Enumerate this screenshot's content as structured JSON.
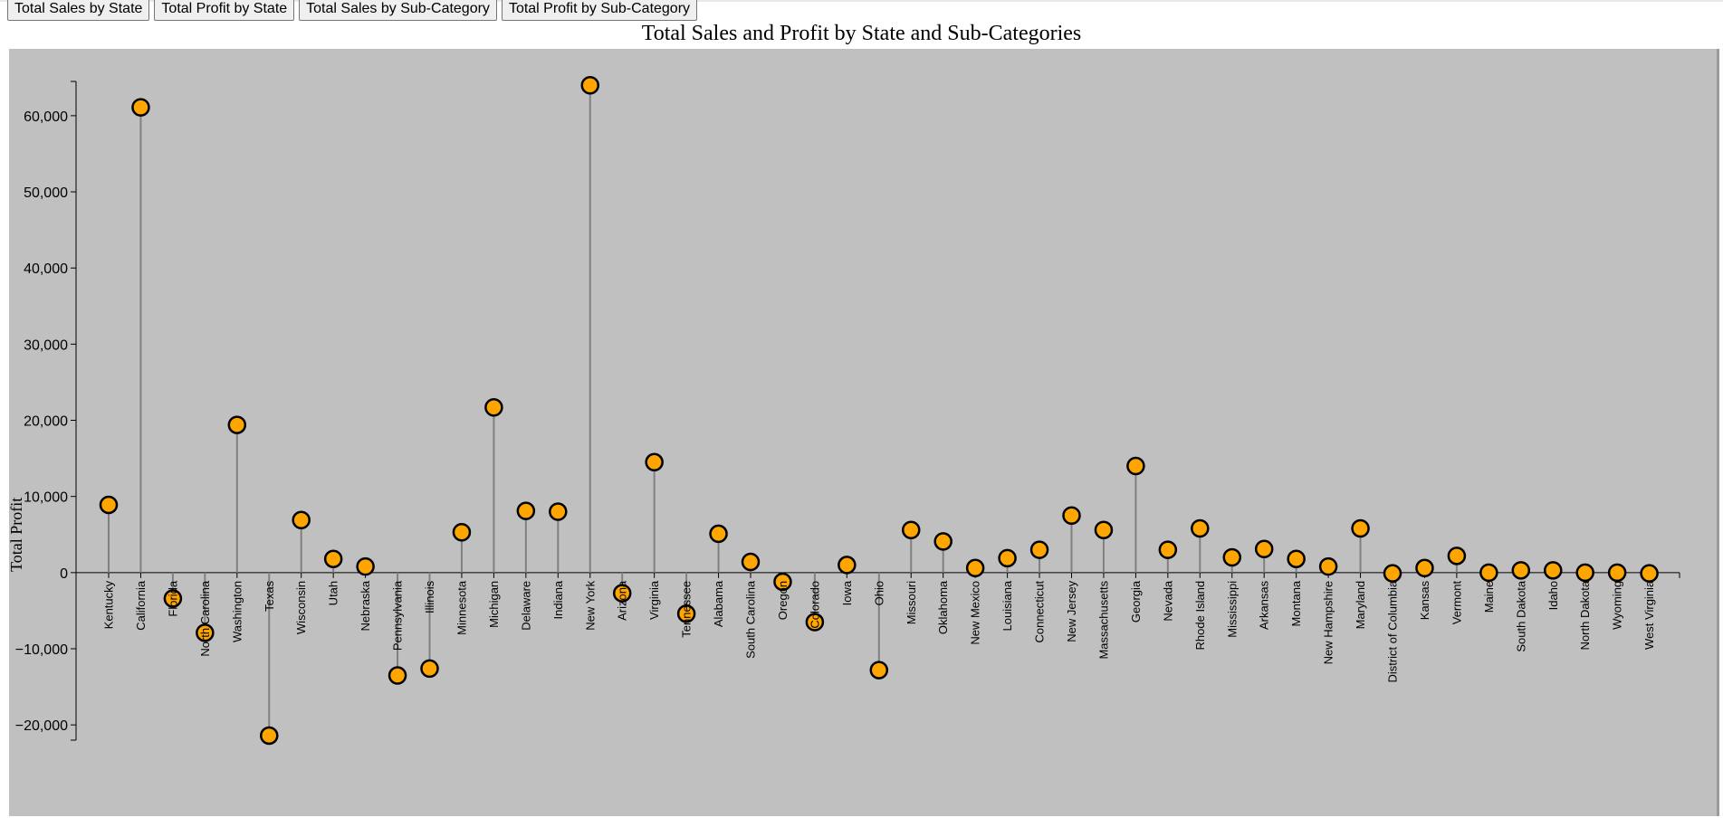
{
  "toolbar": {
    "buttons": [
      "Total Sales by State",
      "Total Profit by State",
      "Total Sales by Sub-Category",
      "Total Profit by Sub-Category"
    ]
  },
  "colors": {
    "plot_background": "#c0c0c0",
    "point_fill": "#ffa500",
    "point_stroke": "#000000",
    "stem": "#808080"
  },
  "chart_data": {
    "type": "scatter",
    "title": "Total Sales and Profit by State and Sub-Categories",
    "xlabel": "",
    "ylabel": "Total Profit",
    "ylim": [
      -22000,
      64500
    ],
    "yticks": [
      -20000,
      -10000,
      0,
      10000,
      20000,
      30000,
      40000,
      50000,
      60000
    ],
    "ytick_labels": [
      "−20,000",
      "−10,000",
      "0",
      "10,000",
      "20,000",
      "30,000",
      "40,000",
      "50,000",
      "60,000"
    ],
    "grid": false,
    "categories": [
      "Kentucky",
      "California",
      "Florida",
      "North Carolina",
      "Washington",
      "Texas",
      "Wisconsin",
      "Utah",
      "Nebraska",
      "Pennsylvania",
      "Illinois",
      "Minnesota",
      "Michigan",
      "Delaware",
      "Indiana",
      "New York",
      "Arizona",
      "Virginia",
      "Tennessee",
      "Alabama",
      "South Carolina",
      "Oregon",
      "Colorado",
      "Iowa",
      "Ohio",
      "Missouri",
      "Oklahoma",
      "New Mexico",
      "Louisiana",
      "Connecticut",
      "New Jersey",
      "Massachusetts",
      "Georgia",
      "Nevada",
      "Rhode Island",
      "Mississippi",
      "Arkansas",
      "Montana",
      "New Hampshire",
      "Maryland",
      "District of Columbia",
      "Kansas",
      "Vermont",
      "Maine",
      "South Dakota",
      "Idaho",
      "North Dakota",
      "Wyoming",
      "West Virginia"
    ],
    "series": [
      {
        "values": [
          8900,
          61100,
          -3400,
          -7900,
          19400,
          -21400,
          6900,
          1800,
          800,
          -13500,
          -12600,
          5300,
          21700,
          8100,
          8000,
          64000,
          -2700,
          14500,
          -5400,
          5100,
          1400,
          -1200,
          -6500,
          1000,
          -12800,
          5600,
          4100,
          600,
          1900,
          3000,
          7500,
          5600,
          14000,
          3000,
          5800,
          2000,
          3100,
          1800,
          800,
          5800,
          -100,
          600,
          2200,
          0,
          300,
          300,
          0,
          0,
          -100
        ]
      }
    ]
  }
}
